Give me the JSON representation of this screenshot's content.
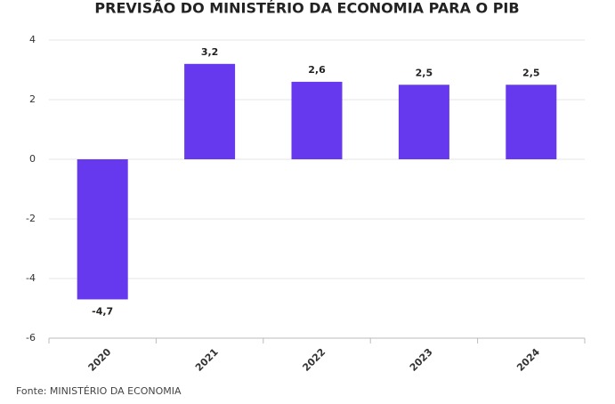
{
  "chart_data": {
    "type": "bar",
    "title": "PREVISÃO DO MINISTÉRIO DA ECONOMIA PARA O PIB",
    "categories": [
      "2020",
      "2021",
      "2022",
      "2023",
      "2024"
    ],
    "values": [
      -4.7,
      3.2,
      2.6,
      2.5,
      2.5
    ],
    "value_labels": [
      "-4,7",
      "3,2",
      "2,6",
      "2,5",
      "2,5"
    ],
    "color": "#6639ee",
    "ylim": [
      -6,
      4
    ],
    "yticks": [
      -6,
      -4,
      -2,
      0,
      2,
      4
    ],
    "grid": true,
    "source": "Fonte: MINISTÉRIO DA ECONOMIA"
  }
}
